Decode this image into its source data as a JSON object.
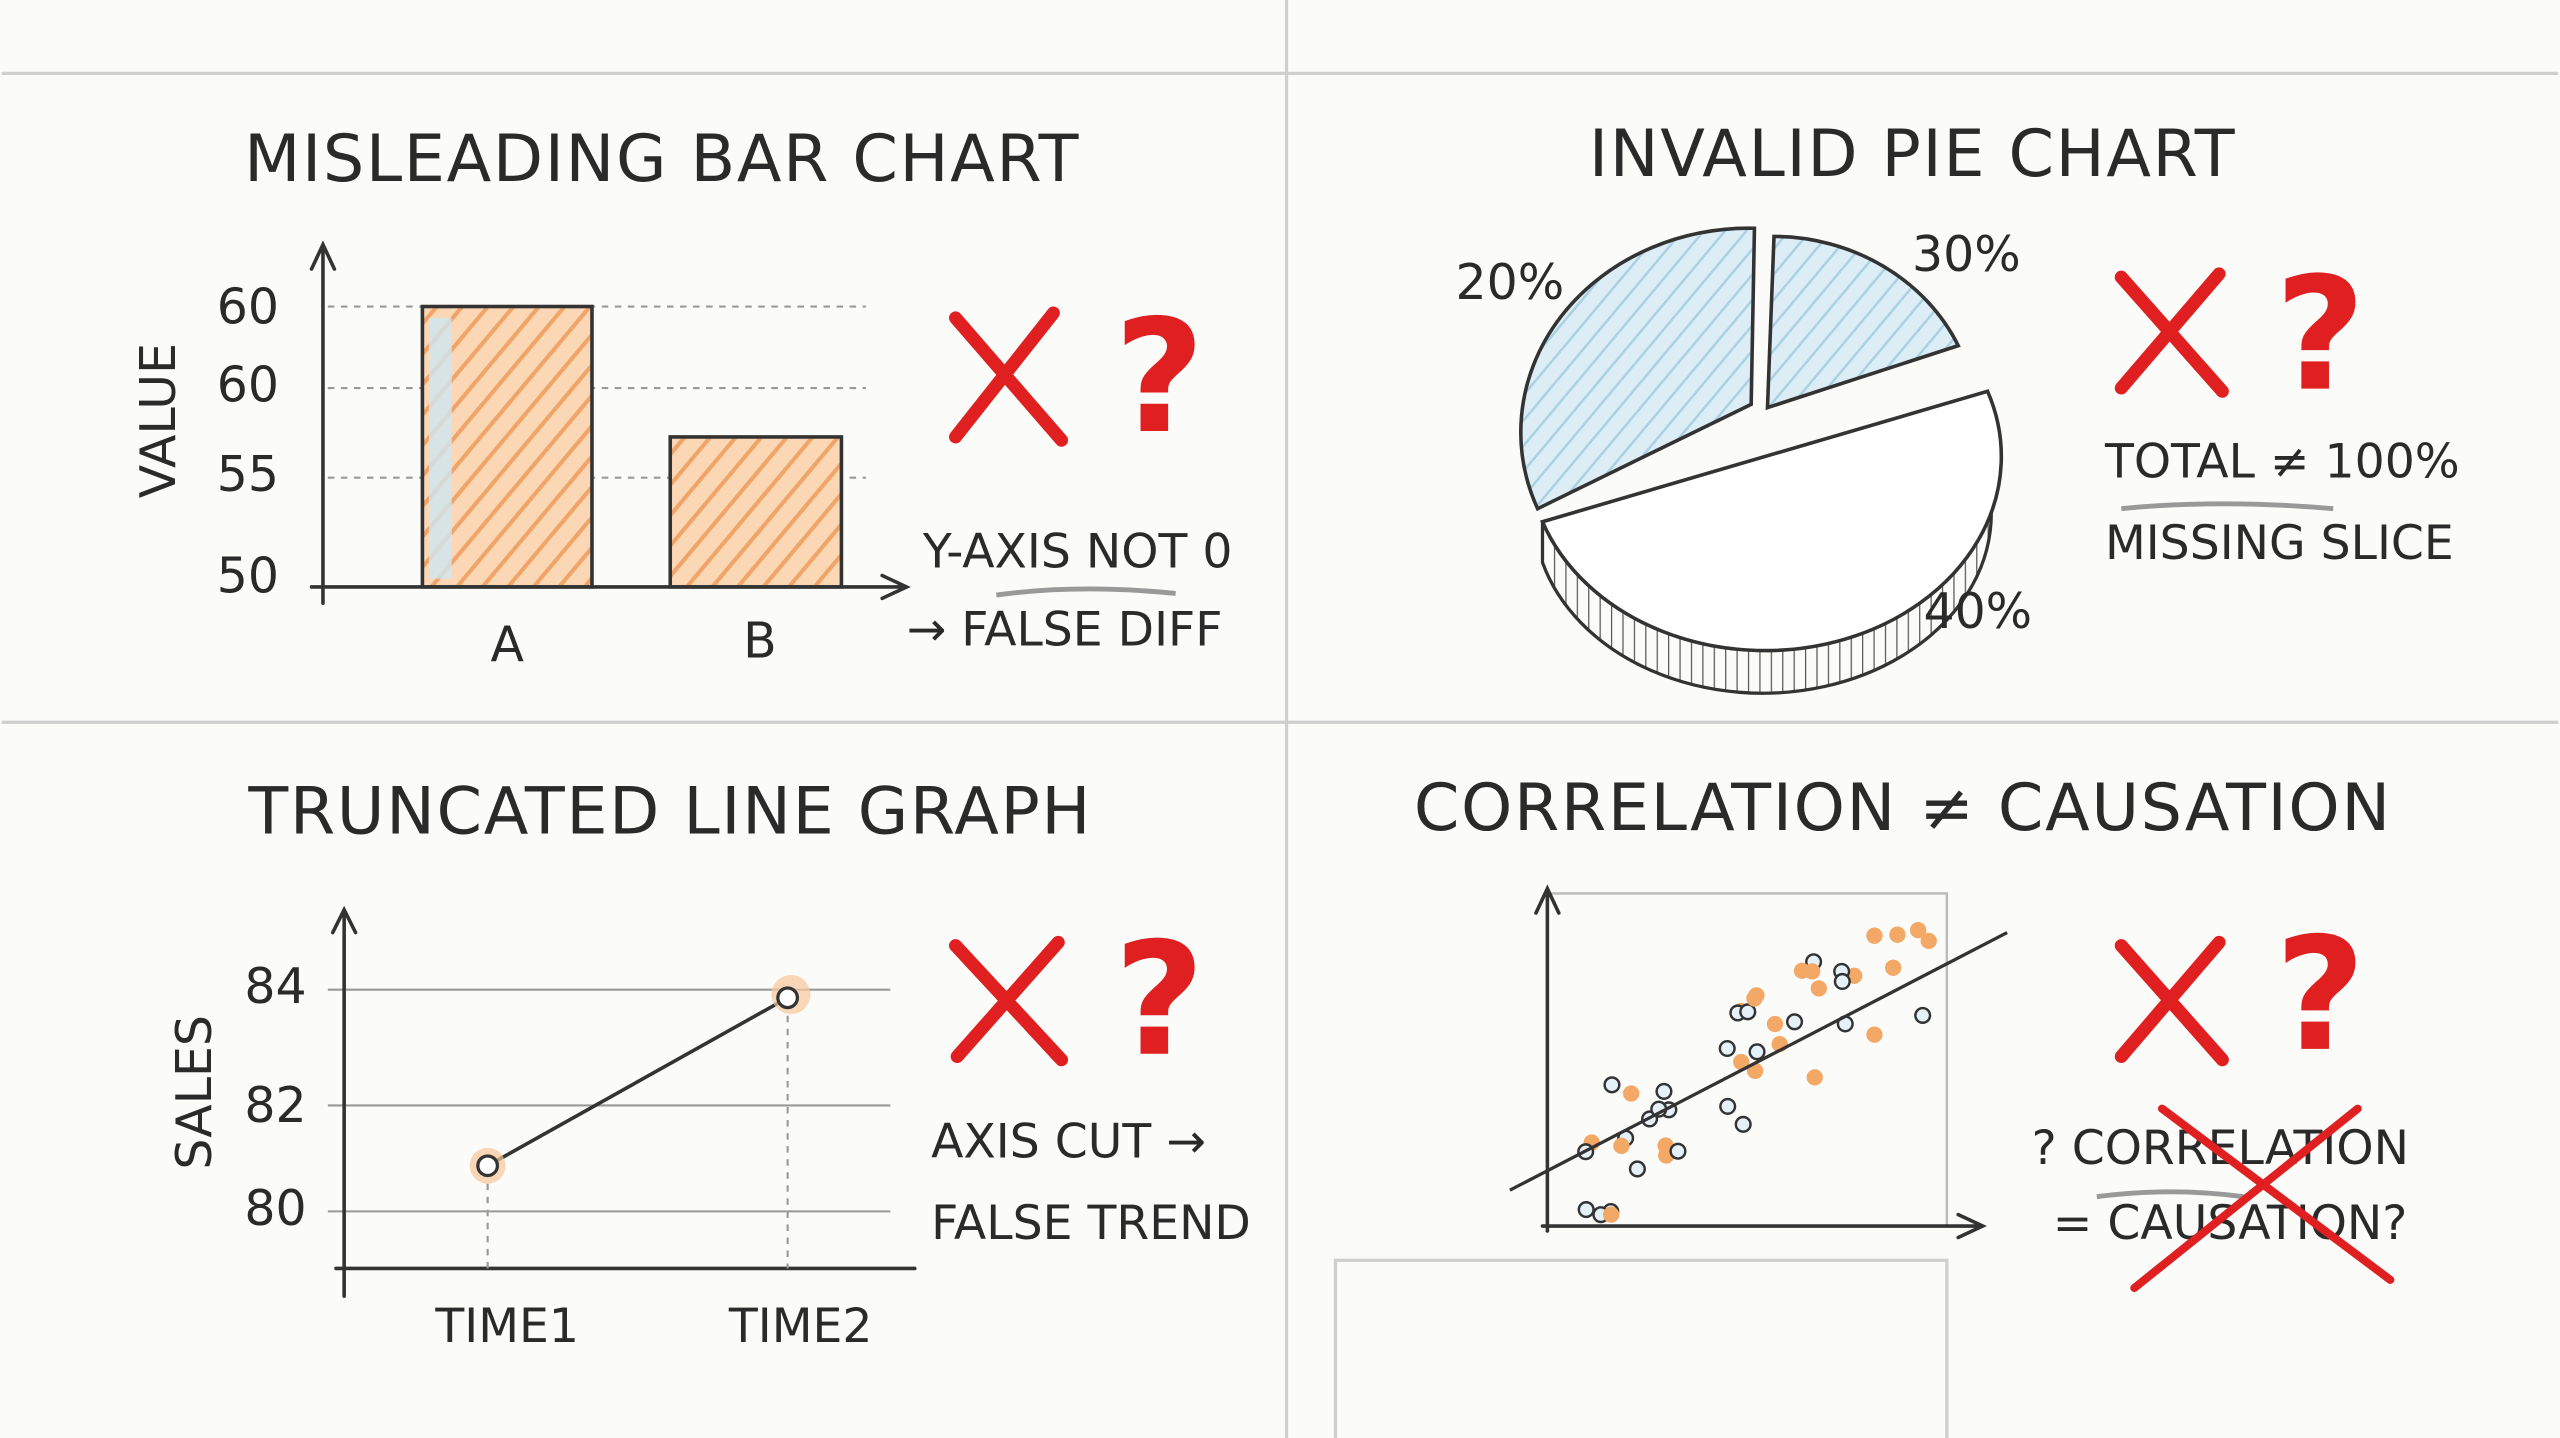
{
  "panels": [
    {
      "title": "MISLEADING BAR CHART",
      "axis_label": "VALUE",
      "ticks": [
        "60",
        "60",
        "55",
        "50"
      ],
      "categories": [
        "A",
        "B"
      ],
      "mark": "?",
      "notes": [
        "Y-AXIS NOT 0",
        "→ FALSE DIFF"
      ]
    },
    {
      "title": "INVALID PIE CHART",
      "slice_labels": [
        "20%",
        "30%",
        "40%"
      ],
      "mark": "?",
      "notes": [
        "TOTAL ≠ 100%",
        "MISSING SLICE"
      ]
    },
    {
      "title": "TRUNCATED LINE GRAPH",
      "axis_label": "SALES",
      "ticks": [
        "84",
        "82",
        "80"
      ],
      "categories": [
        "TIME1",
        "TIME2"
      ],
      "mark": "?",
      "notes": [
        "AXIS CUT →",
        "FALSE TREND"
      ]
    },
    {
      "title": "CORRELATION ≠ CAUSATION",
      "mark": "?",
      "notes": [
        "? CORRELATION",
        "= CAUSATION?"
      ]
    }
  ]
}
